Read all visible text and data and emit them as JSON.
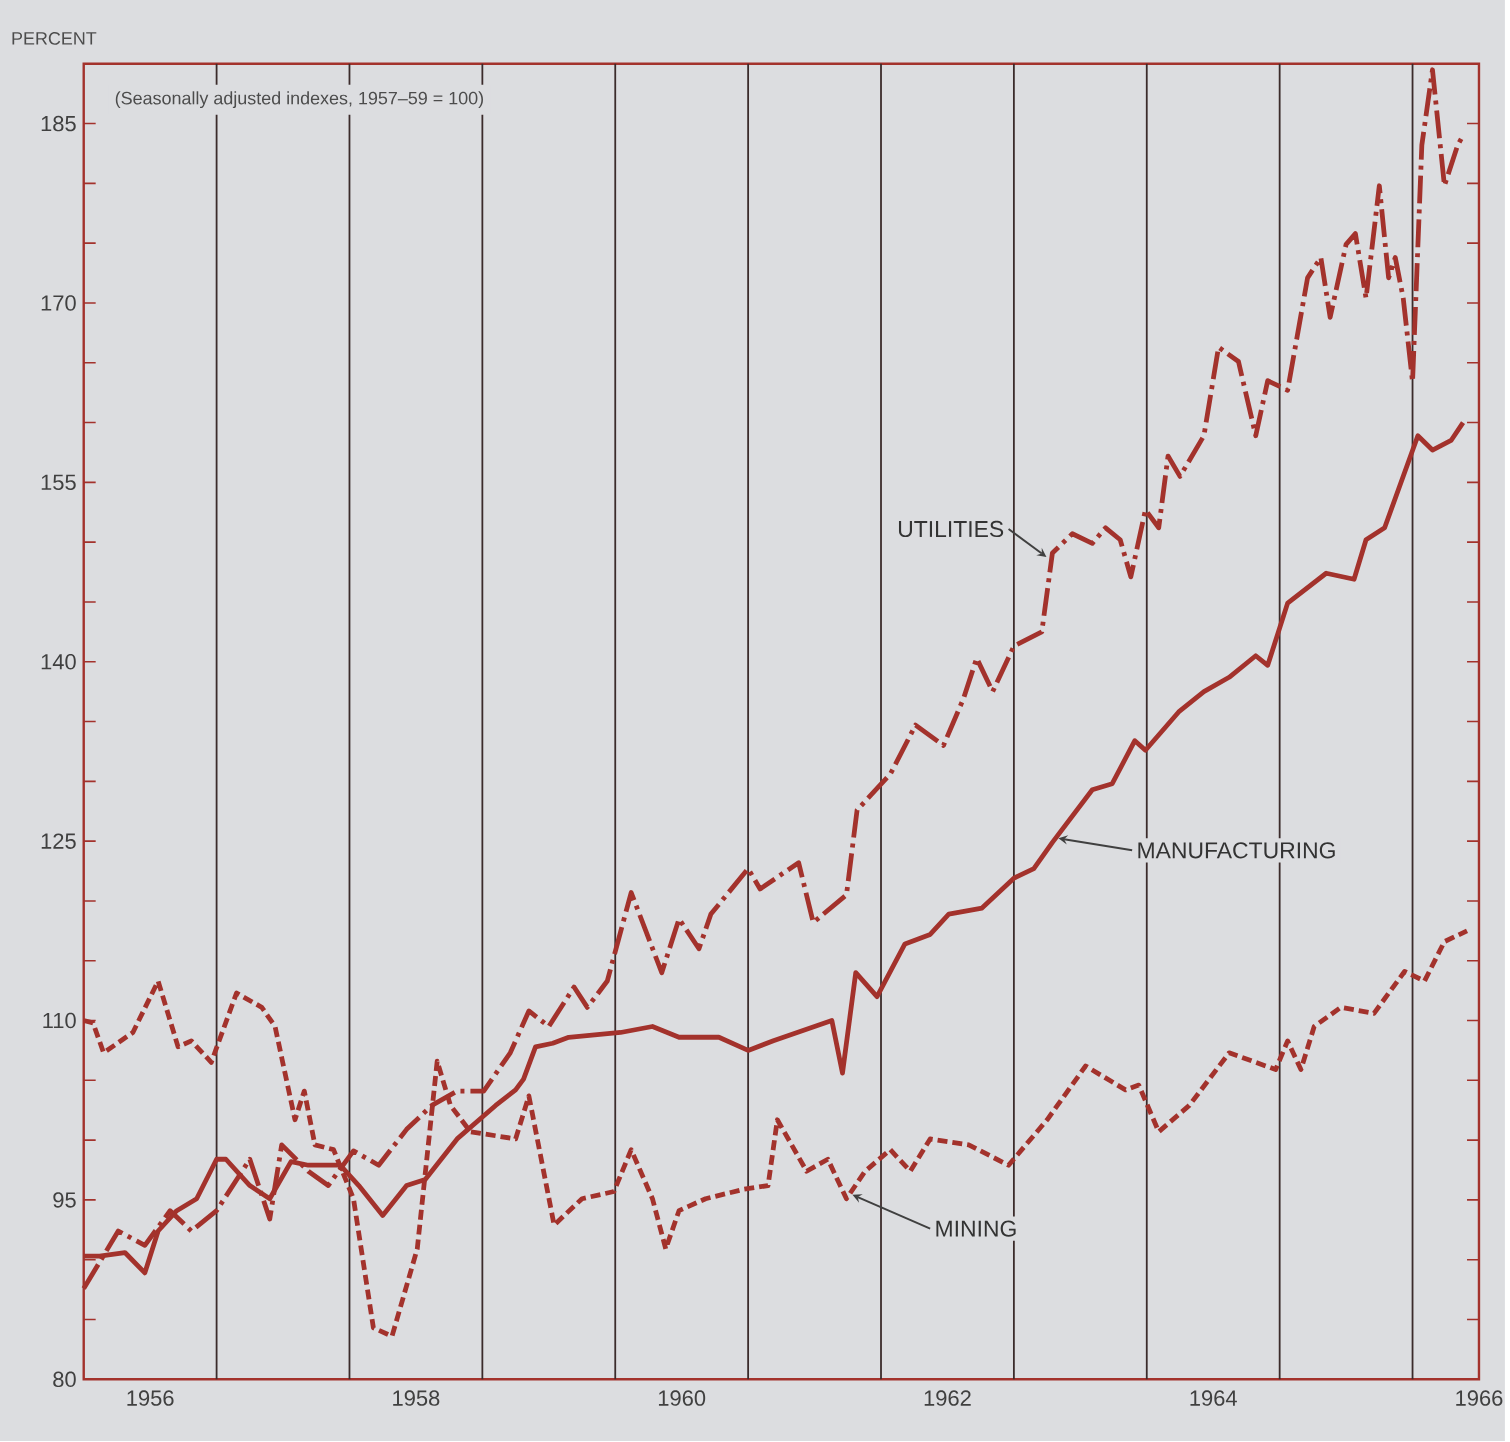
{
  "chart_data": {
    "type": "line",
    "subtitle": "(Seasonally adjusted indexes, 1957–59 = 100)",
    "ylabel": "PERCENT",
    "xlim": [
      1956,
      1966.5
    ],
    "ylim": [
      80,
      190
    ],
    "xticks": [
      {
        "value": 1956.5,
        "label": "1956"
      },
      {
        "value": 1958.5,
        "label": "1958"
      },
      {
        "value": 1960.5,
        "label": "1960"
      },
      {
        "value": 1962.5,
        "label": "1962"
      },
      {
        "value": 1964.5,
        "label": "1964"
      },
      {
        "value": 1966.5,
        "label": "1966"
      }
    ],
    "yticks": [
      80,
      {
        "value": 85,
        "label": null
      },
      {
        "value": 90,
        "label": null
      },
      95,
      {
        "value": 100,
        "label": null
      },
      {
        "value": 105,
        "label": null
      },
      110,
      {
        "value": 115,
        "label": null
      },
      {
        "value": 120,
        "label": null
      },
      125,
      {
        "value": 130,
        "label": null
      },
      {
        "value": 135,
        "label": null
      },
      140,
      {
        "value": 145,
        "label": null
      },
      {
        "value": 150,
        "label": null
      },
      155,
      {
        "value": 160,
        "label": null
      },
      {
        "value": 165,
        "label": null
      },
      170,
      {
        "value": 175,
        "label": null
      },
      {
        "value": 180,
        "label": null
      },
      185
    ],
    "ref_lines": [
      {
        "axis": "x",
        "value": 1957,
        "color": "#3b2b2b"
      },
      {
        "axis": "x",
        "value": 1958,
        "color": "#3b2b2b"
      },
      {
        "axis": "x",
        "value": 1959,
        "color": "#3b2b2b"
      },
      {
        "axis": "x",
        "value": 1960,
        "color": "#3b2b2b"
      },
      {
        "axis": "x",
        "value": 1961,
        "color": "#3b2b2b"
      },
      {
        "axis": "x",
        "value": 1962,
        "color": "#3b2b2b"
      },
      {
        "axis": "x",
        "value": 1963,
        "color": "#3b2b2b"
      },
      {
        "axis": "x",
        "value": 1964,
        "color": "#3b2b2b"
      },
      {
        "axis": "x",
        "value": 1965,
        "color": "#3b2b2b"
      },
      {
        "axis": "x",
        "value": 1966,
        "color": "#3b2b2b"
      }
    ],
    "series": [
      {
        "name": "MANUFACTURING",
        "color": "#a3322c",
        "line_style": "solid",
        "x": [
          1956.0,
          1956.12,
          1956.31,
          1956.46,
          1956.56,
          1956.7,
          1956.85,
          1957.0,
          1957.07,
          1957.25,
          1957.4,
          1957.56,
          1957.69,
          1957.93,
          1958.07,
          1958.25,
          1958.43,
          1958.57,
          1958.81,
          1959.1,
          1959.25,
          1959.31,
          1959.4,
          1959.53,
          1959.65,
          1960.04,
          1960.28,
          1960.48,
          1960.78,
          1961.0,
          1961.19,
          1961.63,
          1961.71,
          1961.81,
          1961.97,
          1962.18,
          1962.37,
          1962.51,
          1962.76,
          1963.0,
          1963.15,
          1963.29,
          1963.59,
          1963.74,
          1963.91,
          1963.99,
          1964.24,
          1964.43,
          1964.62,
          1964.82,
          1964.91,
          1965.06,
          1965.35,
          1965.56,
          1965.65,
          1965.79,
          1966.04,
          1966.15,
          1966.29,
          1966.38
        ],
        "values": [
          90.3,
          90.3,
          90.6,
          88.9,
          92.4,
          94.1,
          95.1,
          98.4,
          98.4,
          96.2,
          95.1,
          98.2,
          97.9,
          97.9,
          96.2,
          93.7,
          96.2,
          96.7,
          100.1,
          102.9,
          104.2,
          105.1,
          107.8,
          108.1,
          108.6,
          109,
          109.5,
          108.6,
          108.6,
          107.5,
          108.3,
          110,
          105.6,
          114,
          112,
          116.4,
          117.2,
          118.9,
          119.4,
          121.9,
          122.7,
          124.9,
          129.3,
          129.8,
          133.4,
          132.6,
          135.8,
          137.5,
          138.7,
          140.5,
          139.7,
          144.9,
          147.4,
          146.9,
          150.2,
          151.2,
          158.9,
          157.7,
          158.5,
          160
        ]
      },
      {
        "name": "UTILITIES",
        "color": "#a3322c",
        "line_style": "dashdot",
        "x": [
          1956.0,
          1956.12,
          1956.26,
          1956.46,
          1956.65,
          1956.81,
          1957.0,
          1957.25,
          1957.4,
          1957.49,
          1957.69,
          1957.84,
          1958.03,
          1958.22,
          1958.43,
          1958.62,
          1958.81,
          1959.01,
          1959.21,
          1959.35,
          1959.5,
          1959.69,
          1959.79,
          1959.94,
          1960.12,
          1960.24,
          1960.35,
          1960.48,
          1960.63,
          1960.72,
          1961.0,
          1961.09,
          1961.38,
          1961.49,
          1961.74,
          1961.82,
          1962.07,
          1962.26,
          1962.47,
          1962.62,
          1962.72,
          1962.84,
          1963.0,
          1963.21,
          1963.29,
          1963.44,
          1963.59,
          1963.69,
          1963.8,
          1963.88,
          1963.99,
          1964.09,
          1964.16,
          1964.25,
          1964.43,
          1964.54,
          1964.69,
          1964.82,
          1964.91,
          1965.06,
          1965.21,
          1965.31,
          1965.38,
          1965.5,
          1965.57,
          1965.65,
          1965.75,
          1965.82,
          1965.87,
          1965.93,
          1966.0,
          1966.07,
          1966.15,
          1966.24,
          1966.34,
          1966.38
        ],
        "values": [
          87.6,
          89.8,
          92.4,
          91.2,
          94.1,
          92.4,
          94.1,
          98.4,
          93.4,
          99.6,
          97.4,
          96.2,
          99.1,
          97.9,
          100.9,
          102.9,
          104.1,
          104.1,
          107.3,
          110.8,
          109.5,
          112.8,
          111.1,
          113.3,
          120.7,
          117.2,
          114,
          118.5,
          116,
          118.9,
          122.7,
          121,
          123.2,
          118.2,
          120.5,
          127.6,
          130.6,
          134.7,
          133,
          136.9,
          140.3,
          137.5,
          141.3,
          142.5,
          149.1,
          150.7,
          149.9,
          151.2,
          150.2,
          147.1,
          152.7,
          151.2,
          157.2,
          155.5,
          158.9,
          166.3,
          165.1,
          158.9,
          163.5,
          162.7,
          172.1,
          173.8,
          168.8,
          174.9,
          175.8,
          170.4,
          179.8,
          172.1,
          173.8,
          170.4,
          163.4,
          183.2,
          189.5,
          179.8,
          183.2,
          184
        ]
      },
      {
        "name": "MINING",
        "color": "#a3322c",
        "line_style": "dashed",
        "x": [
          1956.0,
          1956.07,
          1956.15,
          1956.37,
          1956.56,
          1956.71,
          1956.81,
          1956.96,
          1957.15,
          1957.34,
          1957.44,
          1957.59,
          1957.66,
          1957.74,
          1957.88,
          1958.03,
          1958.18,
          1958.32,
          1958.51,
          1958.66,
          1958.76,
          1958.91,
          1959.25,
          1959.35,
          1959.54,
          1959.75,
          1959.99,
          1960.12,
          1960.28,
          1960.38,
          1960.48,
          1960.68,
          1960.97,
          1961.15,
          1961.22,
          1961.44,
          1961.6,
          1961.74,
          1961.88,
          1962.07,
          1962.22,
          1962.37,
          1962.66,
          1962.96,
          1963.25,
          1963.54,
          1963.84,
          1963.94,
          1964.09,
          1964.32,
          1964.62,
          1964.97,
          1965.06,
          1965.16,
          1965.26,
          1965.46,
          1965.71,
          1965.94,
          1966.09,
          1966.24,
          1966.41
        ],
        "values": [
          110,
          109.8,
          107.3,
          109,
          113.3,
          107.8,
          108.3,
          106.5,
          112.3,
          111.1,
          109.5,
          101.7,
          104.1,
          99.6,
          99.2,
          95.1,
          84.3,
          83.6,
          90.9,
          106.6,
          102.9,
          100.7,
          100.1,
          103.7,
          92.9,
          95.1,
          95.7,
          99.2,
          95.1,
          90.9,
          94.1,
          95.1,
          95.9,
          96.2,
          101.7,
          97.4,
          98.4,
          95.1,
          97.4,
          99.2,
          97.4,
          100.1,
          99.6,
          97.9,
          101.7,
          106.2,
          104.2,
          104.6,
          100.7,
          102.9,
          107.3,
          105.9,
          108.3,
          105.9,
          109.5,
          111.1,
          110.6,
          114.1,
          113.3,
          116.6,
          117.5
        ]
      }
    ]
  }
}
